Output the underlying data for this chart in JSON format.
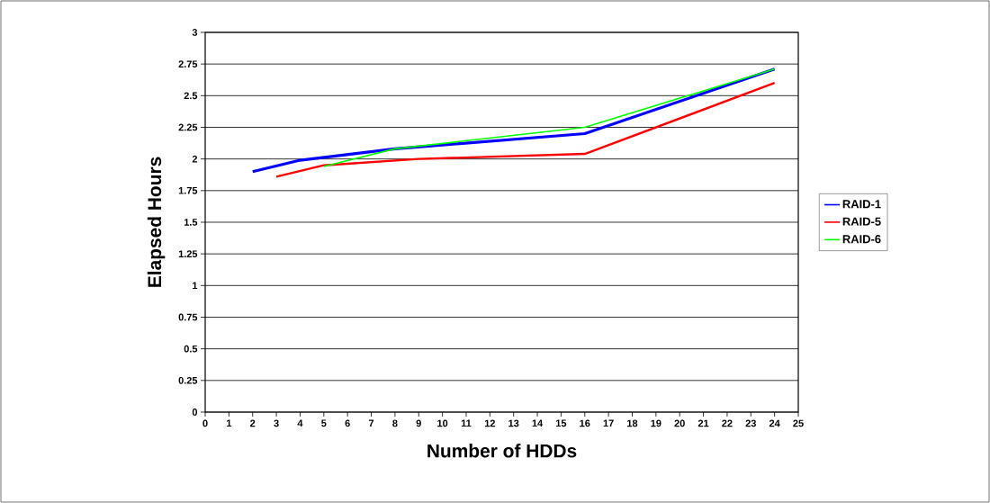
{
  "chart_data": {
    "type": "line",
    "xlabel": "Number of HDDs",
    "ylabel": "Elapsed Hours",
    "series": [
      {
        "name": "RAID-1",
        "color": "#0000ff",
        "x": [
          2,
          4,
          8,
          16,
          24
        ],
        "values": [
          1.9,
          1.99,
          2.08,
          2.2,
          2.71
        ]
      },
      {
        "name": "RAID-5",
        "color": "#ff0000",
        "x": [
          3,
          5,
          9,
          16,
          24
        ],
        "values": [
          1.86,
          1.95,
          2.0,
          2.04,
          2.6
        ]
      },
      {
        "name": "RAID-6",
        "color": "#00ff00",
        "x": [
          5,
          8,
          16,
          24
        ],
        "values": [
          1.94,
          2.08,
          2.25,
          2.71
        ]
      }
    ],
    "xlim": [
      0,
      25
    ],
    "xticks": [
      0,
      1,
      2,
      3,
      4,
      5,
      6,
      7,
      8,
      9,
      10,
      11,
      12,
      13,
      14,
      15,
      16,
      17,
      18,
      19,
      20,
      21,
      22,
      23,
      24,
      25
    ],
    "ylim": [
      0,
      3
    ],
    "yticks": [
      0,
      0.25,
      0.5,
      0.75,
      1,
      1.25,
      1.5,
      1.75,
      2,
      2.25,
      2.5,
      2.75,
      3
    ],
    "grid": "y",
    "legend": "right",
    "marker": "none",
    "line_style": "solid"
  }
}
